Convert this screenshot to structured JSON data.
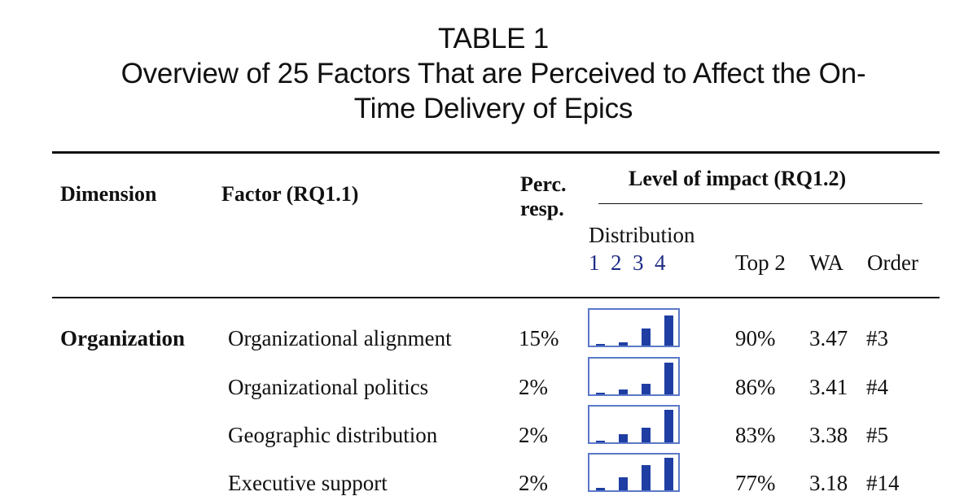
{
  "title": {
    "line1": "TABLE 1",
    "line2": "Overview of 25 Factors That are Perceived to Affect the On-",
    "line3": "Time Delivery of Epics"
  },
  "headers": {
    "dimension": "Dimension",
    "factor": "Factor (RQ1.1)",
    "perc_line1": "Perc.",
    "perc_line2": "resp.",
    "impact": "Level of impact (RQ1.2)",
    "distribution": "Distribution",
    "scale": [
      "1",
      "2",
      "3",
      "4"
    ],
    "top2": "Top 2",
    "wa": "WA",
    "order": "Order"
  },
  "rows": [
    {
      "dimension": "Organization",
      "factor": "Organizational alignment",
      "perc": "15%",
      "distribution": [
        0.03,
        0.09,
        0.47,
        0.85
      ],
      "top2": "90%",
      "wa": "3.47",
      "order": "#3"
    },
    {
      "dimension": "",
      "factor": "Organizational politics",
      "perc": "2%",
      "distribution": [
        0.03,
        0.14,
        0.3,
        0.88
      ],
      "top2": "86%",
      "wa": "3.41",
      "order": "#4"
    },
    {
      "dimension": "",
      "factor": "Geographic distribution",
      "perc": "2%",
      "distribution": [
        0.03,
        0.23,
        0.4,
        0.9
      ],
      "top2": "83%",
      "wa": "3.38",
      "order": "#5"
    },
    {
      "dimension": "",
      "factor": "Executive support",
      "perc": "2%",
      "distribution": [
        0.07,
        0.36,
        0.7,
        0.92
      ],
      "top2": "77%",
      "wa": "3.18",
      "order": "#14"
    }
  ],
  "colors": {
    "bar": "#1f3ea3",
    "sparkline_border": "#5b78c8",
    "scale_digits": "#1f2d86"
  }
}
